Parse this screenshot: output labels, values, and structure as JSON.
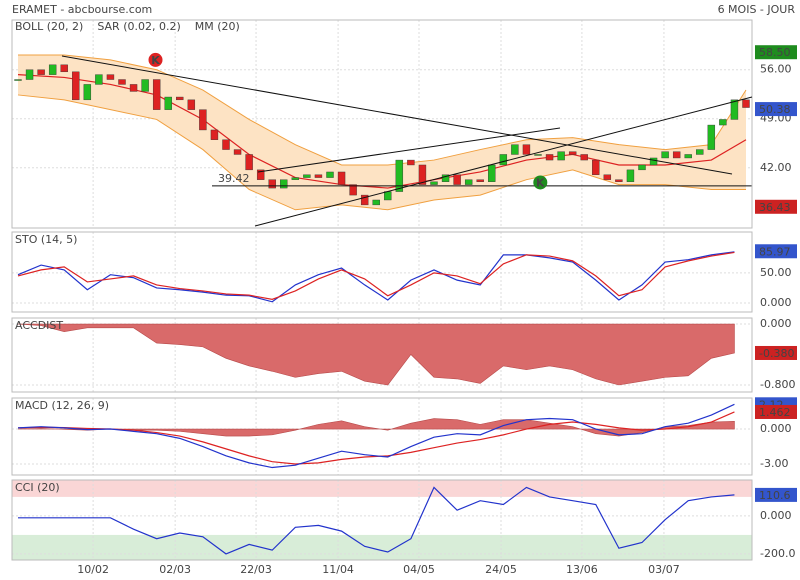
{
  "header": {
    "title": "ERAMET - abcbourse.com",
    "period": "6 MOIS - JOUR"
  },
  "chart_data": [
    {
      "type": "candlestick",
      "legend": [
        {
          "text": "BOLL (20, 2)",
          "color": "#f0a040"
        },
        {
          "text": "SAR (0.02, 0.2)",
          "color": "#dd2222"
        },
        {
          "text": "MM (20)",
          "color": "#dd2222"
        }
      ],
      "xlim": [
        0,
        63
      ],
      "xticks": [
        {
          "value": 6.5,
          "label": "10/02"
        },
        {
          "value": 13.6,
          "label": "02/03"
        },
        {
          "value": 20.6,
          "label": "22/03"
        },
        {
          "value": 27.7,
          "label": "11/04"
        },
        {
          "value": 34.7,
          "label": "04/05"
        },
        {
          "value": 41.8,
          "label": "24/05"
        },
        {
          "value": 48.8,
          "label": "13/06"
        },
        {
          "value": 55.9,
          "label": "03/07"
        }
      ],
      "ylim": [
        33.4,
        63.1
      ],
      "yticks": [
        {
          "value": 42,
          "label": "42.00"
        },
        {
          "value": 49,
          "label": "49.00"
        },
        {
          "value": 56,
          "label": "56.00"
        }
      ],
      "values": [
        54.6,
        56,
        55.3,
        56.7,
        55.7,
        51.7,
        53.9,
        55.3,
        54.6,
        53.9,
        52.9,
        54.6,
        50.3,
        52.1,
        51.7,
        50.3,
        47.4,
        46,
        44.6,
        43.9,
        41.7,
        40.3,
        39.1,
        40.3,
        40.6,
        41,
        40.6,
        41.4,
        39.6,
        38.1,
        36.7,
        37.4,
        38.6,
        43.1,
        42.4,
        39.6,
        40,
        41,
        39.6,
        40.3,
        40,
        42.4,
        43.9,
        45.3,
        43.9,
        43.9,
        43.1,
        44.3,
        43.9,
        43.1,
        41,
        40.3,
        40,
        41.7,
        42.4,
        43.4,
        44.3,
        43.4,
        43.9,
        44.6,
        48.1,
        48.9,
        51.7,
        50.6
      ],
      "up_color": "#22bb22",
      "down_color": "#dd2222",
      "band_x": [
        0,
        4,
        8,
        12,
        16,
        20,
        24,
        28,
        32,
        36,
        40,
        44,
        48,
        52,
        56,
        60,
        63
      ],
      "band_upper": [
        58.1,
        58.1,
        57.4,
        56,
        53.1,
        48.9,
        45.3,
        42.4,
        42.4,
        43.1,
        44.6,
        46,
        46.3,
        45.3,
        44.6,
        45.3,
        53.1
      ],
      "band_lower": [
        52.4,
        51.7,
        50.3,
        48.9,
        44.6,
        38.9,
        36,
        36.7,
        36,
        37.4,
        38.1,
        40.3,
        41.7,
        39.6,
        39.6,
        38.9,
        38.9
      ],
      "mm": [
        55.3,
        54.9,
        53.9,
        52.4,
        48.9,
        43.9,
        40.6,
        39.6,
        39.1,
        40.3,
        41.4,
        43.1,
        43.9,
        42.4,
        42.4,
        43.1,
        46
      ],
      "band_color": "#fde3c4",
      "band_line": "#f0a040",
      "mm_color": "#dd2222",
      "level": {
        "value": 39.42,
        "label": "39.42"
      },
      "markers": [
        {
          "text": "K",
          "x": 11.9,
          "y": 57.4,
          "color": "#dd2222"
        },
        {
          "text": "K",
          "x": 45.2,
          "y": 39.9,
          "color": "#1e8c1e"
        }
      ],
      "price_labels": [
        {
          "value": 58.5,
          "label": "58.50",
          "color": "#1e8c1e"
        },
        {
          "value": 50.38,
          "color": "#3355cc"
        },
        {
          "value": 36.43,
          "color": "#cc2222"
        }
      ]
    },
    {
      "type": "line",
      "title": "STO (14, 5)",
      "ylim": [
        -15,
        118
      ],
      "yticks": [
        {
          "value": 0,
          "label": "0.000"
        },
        {
          "value": 50,
          "label": "50.00"
        }
      ],
      "x": [
        0,
        2,
        4,
        6,
        8,
        10,
        12,
        14,
        16,
        18,
        20,
        22,
        24,
        26,
        28,
        30,
        32,
        34,
        36,
        38,
        40,
        42,
        44,
        46,
        48,
        50,
        52,
        54,
        56,
        58,
        60,
        62
      ],
      "series": [
        {
          "style": "line",
          "color": "#2233cc",
          "values": [
            47,
            63,
            55,
            22,
            47,
            42,
            25,
            22,
            18,
            13,
            12,
            2,
            30,
            47,
            58,
            30,
            5,
            38,
            55,
            38,
            30,
            80,
            80,
            75,
            68,
            38,
            5,
            30,
            68,
            72,
            80,
            85
          ]
        },
        {
          "style": "line",
          "color": "#dd2222",
          "values": [
            45,
            55,
            60,
            35,
            40,
            45,
            30,
            24,
            20,
            15,
            13,
            6,
            20,
            40,
            55,
            40,
            12,
            30,
            50,
            45,
            32,
            65,
            80,
            78,
            70,
            45,
            12,
            22,
            60,
            70,
            78,
            84
          ]
        }
      ],
      "last_labels": [
        {
          "value": 85.97,
          "color": "#3355cc"
        }
      ]
    },
    {
      "type": "line",
      "title": "ACCDIST",
      "ylim": [
        -0.892,
        0.079
      ],
      "yticks": [
        {
          "value": 0,
          "label": "0.000"
        },
        {
          "value": -0.8,
          "label": "-0.800"
        }
      ],
      "x": [
        0,
        2,
        4,
        6,
        8,
        10,
        12,
        14,
        16,
        18,
        20,
        22,
        24,
        26,
        28,
        30,
        32,
        34,
        36,
        38,
        40,
        42,
        44,
        46,
        48,
        50,
        52,
        54,
        56,
        58,
        60,
        62
      ],
      "series": [
        {
          "style": "area",
          "color": "#d96a6a",
          "values": [
            0,
            -0.02,
            -0.1,
            -0.05,
            -0.05,
            -0.05,
            -0.25,
            -0.27,
            -0.3,
            -0.45,
            -0.55,
            -0.62,
            -0.7,
            -0.65,
            -0.62,
            -0.75,
            -0.8,
            -0.4,
            -0.7,
            -0.72,
            -0.78,
            -0.55,
            -0.6,
            -0.55,
            -0.6,
            -0.72,
            -0.8,
            -0.75,
            -0.7,
            -0.68,
            -0.45,
            -0.38
          ]
        }
      ],
      "last_labels": [
        {
          "value": -0.38,
          "label": "-0.380",
          "color": "#cc2222"
        }
      ]
    },
    {
      "type": "line",
      "title": "MACD (12, 26, 9)",
      "ylim": [
        -3.94,
        2.66
      ],
      "yticks": [
        {
          "value": 0,
          "label": "0.000"
        },
        {
          "value": -3,
          "label": "-3.00"
        }
      ],
      "x": [
        0,
        2,
        4,
        6,
        8,
        10,
        12,
        14,
        16,
        18,
        20,
        22,
        24,
        26,
        28,
        30,
        32,
        34,
        36,
        38,
        40,
        42,
        44,
        46,
        48,
        50,
        52,
        54,
        56,
        58,
        60,
        62
      ],
      "series": [
        {
          "style": "area",
          "color": "#d96a6a",
          "values": [
            0,
            0.05,
            -0.02,
            -0.1,
            0,
            -0.1,
            -0.1,
            -0.2,
            -0.4,
            -0.6,
            -0.6,
            -0.5,
            -0.1,
            0.4,
            0.7,
            0.2,
            -0.1,
            0.5,
            0.9,
            0.8,
            0.4,
            0.8,
            0.8,
            0.5,
            0.2,
            -0.4,
            -0.6,
            -0.3,
            0.2,
            0.3,
            0.6,
            0.66
          ]
        },
        {
          "style": "line",
          "color": "#dd2222",
          "values": [
            0.1,
            0.15,
            0.12,
            0.05,
            0,
            -0.1,
            -0.3,
            -0.6,
            -1.1,
            -1.7,
            -2.3,
            -2.8,
            -3,
            -2.9,
            -2.6,
            -2.4,
            -2.3,
            -2,
            -1.6,
            -1.2,
            -0.9,
            -0.5,
            0,
            0.4,
            0.6,
            0.4,
            0.1,
            -0.1,
            0,
            0.2,
            0.6,
            1.462
          ]
        },
        {
          "style": "line",
          "color": "#2233cc",
          "values": [
            0.1,
            0.2,
            0.1,
            -0.05,
            0,
            -0.2,
            -0.4,
            -0.8,
            -1.5,
            -2.3,
            -2.9,
            -3.3,
            -3.1,
            -2.5,
            -1.9,
            -2.2,
            -2.4,
            -1.5,
            -0.7,
            -0.4,
            -0.5,
            0.3,
            0.8,
            0.9,
            0.8,
            0,
            -0.5,
            -0.4,
            0.2,
            0.5,
            1.2,
            2.12
          ]
        }
      ],
      "last_labels": [
        {
          "value": 2.12,
          "color": "#3355cc"
        },
        {
          "value": 1.462,
          "color": "#cc2222"
        }
      ]
    },
    {
      "type": "line",
      "title": "CCI (20)",
      "ylim": [
        -232,
        189
      ],
      "yticks": [
        {
          "value": 0,
          "label": "0.000"
        },
        {
          "value": -200,
          "label": "-200.0"
        }
      ],
      "zones": [
        {
          "above": 100,
          "color": "#fad6d6"
        },
        {
          "below": -100,
          "color": "#d8edd8"
        }
      ],
      "x": [
        0,
        2,
        4,
        6,
        8,
        10,
        12,
        14,
        16,
        18,
        20,
        22,
        24,
        26,
        28,
        30,
        32,
        34,
        36,
        38,
        40,
        42,
        44,
        46,
        48,
        50,
        52,
        54,
        56,
        58,
        60,
        62
      ],
      "series": [
        {
          "style": "line",
          "color": "#2233cc",
          "values": [
            -10,
            -10,
            -10,
            -10,
            -10,
            -70,
            -120,
            -90,
            -110,
            -200,
            -150,
            -180,
            -60,
            -50,
            -80,
            -160,
            -190,
            -120,
            150,
            30,
            80,
            60,
            150,
            100,
            80,
            60,
            -170,
            -140,
            -20,
            80,
            100,
            110.6
          ]
        }
      ],
      "last_labels": [
        {
          "value": 110.6,
          "color": "#3355cc"
        }
      ]
    }
  ]
}
